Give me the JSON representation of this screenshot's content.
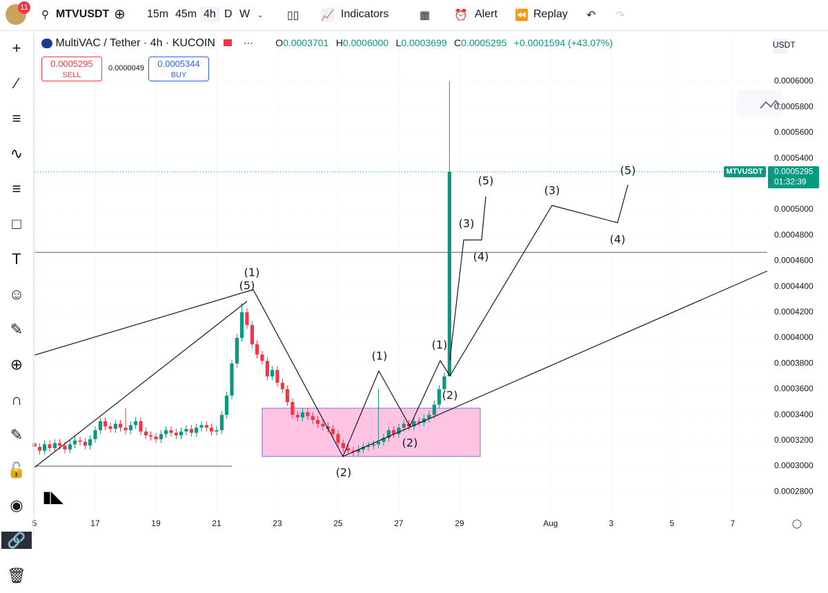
{
  "toolbar": {
    "badge": "11",
    "symbol": "MTVUSDT",
    "intervals": [
      "15m",
      "45m",
      "4h",
      "D",
      "W"
    ],
    "indicators": "Indicators",
    "alert": "Alert",
    "replay": "Replay"
  },
  "legend": {
    "title": "MultiVAC / Tether · 4h · KUCOIN",
    "o_label": "O",
    "o": "0.0003701",
    "h_label": "H",
    "h": "0.0006000",
    "l_label": "L",
    "l": "0.0003699",
    "c_label": "C",
    "c": "0.0005295",
    "change": "+0.0001594 (+43.07%)"
  },
  "trade": {
    "sell_price": "0.0005295",
    "sell": "SELL",
    "spread": "0.0000049",
    "buy_price": "0.0005344",
    "buy": "BUY"
  },
  "currency": "USDT",
  "price_tag": {
    "symbol": "MTVUSDT",
    "price": "0.0005295",
    "countdown": "01:32:39"
  },
  "drawings": {
    "labels": [
      "(1)",
      "(5)",
      "(2)",
      "(1)",
      "(2)",
      "(1)",
      "(2)",
      "(3)",
      "(4)",
      "(5)",
      "(3)",
      "(4)",
      "(5)"
    ]
  },
  "chart_data": {
    "type": "candlestick",
    "up_color": "#089981",
    "down_color": "#f23645",
    "grid": true,
    "xlim": [
      15,
      39.14
    ],
    "xticks": [
      {
        "value": 15,
        "label": "5"
      },
      17,
      19,
      21,
      23,
      25,
      27,
      29,
      {
        "value": 32,
        "label": "Aug"
      },
      {
        "value": 34,
        "label": "3"
      },
      {
        "value": 36,
        "label": "5"
      },
      {
        "value": 38,
        "label": "7"
      }
    ],
    "ylim": [
      0.0002629,
      0.0006366
    ],
    "yticks": [
      {
        "value": 0.00028,
        "label": "0.0002800"
      },
      {
        "value": 0.0003,
        "label": "0.0003000"
      },
      {
        "value": 0.00032,
        "label": "0.0003200"
      },
      {
        "value": 0.00034,
        "label": "0.0003400"
      },
      {
        "value": 0.00036,
        "label": "0.0003600"
      },
      {
        "value": 0.00038,
        "label": "0.0003800"
      },
      {
        "value": 0.0004,
        "label": "0.0004000"
      },
      {
        "value": 0.00042,
        "label": "0.0004200"
      },
      {
        "value": 0.00044,
        "label": "0.0004400"
      },
      {
        "value": 0.00046,
        "label": "0.0004600"
      },
      {
        "value": 0.00048,
        "label": "0.0004800"
      },
      {
        "value": 0.0005,
        "label": "0.0005000"
      },
      {
        "value": 0.00052,
        "label": "0.0005200"
      },
      {
        "value": 0.00054,
        "label": "0.0005400"
      },
      {
        "value": 0.00056,
        "label": "0.0005600"
      },
      {
        "value": 0.00058,
        "label": "0.0005800"
      },
      {
        "value": 0.0006,
        "label": "0.0006000"
      }
    ],
    "x": [
      15,
      15.17,
      15.33,
      15.5,
      15.67,
      15.83,
      16,
      16.17,
      16.33,
      16.5,
      16.67,
      16.83,
      17,
      17.17,
      17.33,
      17.5,
      17.67,
      17.83,
      18,
      18.17,
      18.33,
      18.5,
      18.67,
      18.83,
      19,
      19.17,
      19.33,
      19.5,
      19.67,
      19.83,
      20,
      20.17,
      20.33,
      20.5,
      20.67,
      20.83,
      21,
      21.17,
      21.33,
      21.5,
      21.67,
      21.83,
      22,
      22.17,
      22.33,
      22.5,
      22.67,
      22.83,
      23,
      23.17,
      23.33,
      23.5,
      23.67,
      23.83,
      24,
      24.17,
      24.33,
      24.5,
      24.67,
      24.83,
      25,
      25.17,
      25.33,
      25.5,
      25.67,
      25.83,
      26,
      26.17,
      26.33,
      26.5,
      26.67,
      26.83,
      27,
      27.17,
      27.33,
      27.5,
      27.67,
      27.83,
      28,
      28.17,
      28.33,
      28.5,
      28.67
    ],
    "open": [
      0.000318,
      0.000315,
      0.000312,
      0.000317,
      0.000314,
      0.000318,
      0.000316,
      0.000313,
      0.000317,
      0.00032,
      0.000319,
      0.000316,
      0.000321,
      0.000328,
      0.000335,
      0.000331,
      0.000329,
      0.000333,
      0.00033,
      0.000328,
      0.000332,
      0.000335,
      0.000327,
      0.000324,
      0.000323,
      0.000321,
      0.000325,
      0.000328,
      0.000326,
      0.000324,
      0.000327,
      0.000329,
      0.000326,
      0.00033,
      0.000332,
      0.00033,
      0.000327,
      0.000328,
      0.00034,
      0.000355,
      0.00038,
      0.0004,
      0.00042,
      0.00041,
      0.000395,
      0.000387,
      0.000382,
      0.00037,
      0.000375,
      0.000365,
      0.00036,
      0.00035,
      0.00034,
      0.000338,
      0.000342,
      0.000339,
      0.000336,
      0.000333,
      0.000331,
      0.000329,
      0.000325,
      0.000318,
      0.000314,
      0.000312,
      0.000311,
      0.000313,
      0.000315,
      0.000316,
      0.000317,
      0.000319,
      0.000322,
      0.000328,
      0.000325,
      0.00033,
      0.000333,
      0.000331,
      0.000335,
      0.000334,
      0.000337,
      0.00034,
      0.000348,
      0.00036,
      0.0003701
    ],
    "high": [
      0.000321,
      0.000318,
      0.00032,
      0.00032,
      0.000321,
      0.000321,
      0.000319,
      0.00032,
      0.000323,
      0.000323,
      0.000322,
      0.000324,
      0.000331,
      0.000338,
      0.000338,
      0.000334,
      0.000336,
      0.000336,
      0.000345,
      0.000335,
      0.000338,
      0.000338,
      0.00033,
      0.000327,
      0.000326,
      0.000328,
      0.000331,
      0.000331,
      0.000329,
      0.00033,
      0.000332,
      0.000332,
      0.000333,
      0.000335,
      0.000335,
      0.000333,
      0.000331,
      0.000343,
      0.000358,
      0.000383,
      0.000403,
      0.000427,
      0.000423,
      0.000413,
      0.000398,
      0.00039,
      0.000385,
      0.000378,
      0.000378,
      0.000368,
      0.000363,
      0.000353,
      0.000343,
      0.000345,
      0.000345,
      0.000342,
      0.000339,
      0.000336,
      0.000334,
      0.000332,
      0.000328,
      0.000321,
      0.000317,
      0.000315,
      0.000316,
      0.000318,
      0.000319,
      0.00032,
      0.00036,
      0.000325,
      0.000331,
      0.000331,
      0.000333,
      0.000336,
      0.000336,
      0.000338,
      0.000338,
      0.00034,
      0.000343,
      0.000351,
      0.000363,
      0.000373,
      0.0006
    ],
    "low": [
      0.000312,
      0.000309,
      0.000309,
      0.000311,
      0.000311,
      0.000313,
      0.00031,
      0.00031,
      0.000314,
      0.000316,
      0.000313,
      0.000313,
      0.000318,
      0.000325,
      0.000328,
      0.000326,
      0.000326,
      0.000327,
      0.000325,
      0.000325,
      0.000329,
      0.000324,
      0.000321,
      0.00032,
      0.000318,
      0.000318,
      0.000322,
      0.000323,
      0.000321,
      0.000321,
      0.000324,
      0.000323,
      0.000323,
      0.000327,
      0.000327,
      0.000324,
      0.000324,
      0.000325,
      0.000337,
      0.000352,
      0.000377,
      0.000397,
      0.000407,
      0.000392,
      0.000384,
      0.000379,
      0.000367,
      0.000367,
      0.000362,
      0.000357,
      0.000347,
      0.000337,
      0.000335,
      0.000335,
      0.000336,
      0.000333,
      0.00033,
      0.000328,
      0.000326,
      0.000322,
      0.000315,
      0.000311,
      0.000309,
      0.000308,
      0.000308,
      0.00031,
      0.000312,
      0.000313,
      0.000314,
      0.000316,
      0.000319,
      0.000322,
      0.000322,
      0.000327,
      0.000328,
      0.000328,
      0.000331,
      0.000331,
      0.000334,
      0.000337,
      0.000345,
      0.000357,
      0.0003699
    ],
    "close": [
      0.000315,
      0.000312,
      0.000317,
      0.000314,
      0.000318,
      0.000316,
      0.000313,
      0.000317,
      0.00032,
      0.000319,
      0.000316,
      0.000321,
      0.000328,
      0.000335,
      0.000331,
      0.000329,
      0.000333,
      0.00033,
      0.000328,
      0.000332,
      0.000335,
      0.000327,
      0.000324,
      0.000323,
      0.000321,
      0.000325,
      0.000328,
      0.000326,
      0.000324,
      0.000327,
      0.000329,
      0.000326,
      0.00033,
      0.000332,
      0.00033,
      0.000327,
      0.000328,
      0.00034,
      0.000355,
      0.00038,
      0.0004,
      0.00042,
      0.00041,
      0.000395,
      0.000387,
      0.000382,
      0.00037,
      0.000375,
      0.000365,
      0.00036,
      0.00035,
      0.00034,
      0.000338,
      0.000342,
      0.000339,
      0.000336,
      0.000333,
      0.000331,
      0.000329,
      0.000325,
      0.000318,
      0.000314,
      0.000312,
      0.000311,
      0.000313,
      0.000315,
      0.000316,
      0.000317,
      0.000319,
      0.000322,
      0.000328,
      0.000325,
      0.00033,
      0.000333,
      0.000331,
      0.000335,
      0.000334,
      0.000337,
      0.00034,
      0.000348,
      0.00036,
      0.00037,
      0.0005295
    ]
  }
}
